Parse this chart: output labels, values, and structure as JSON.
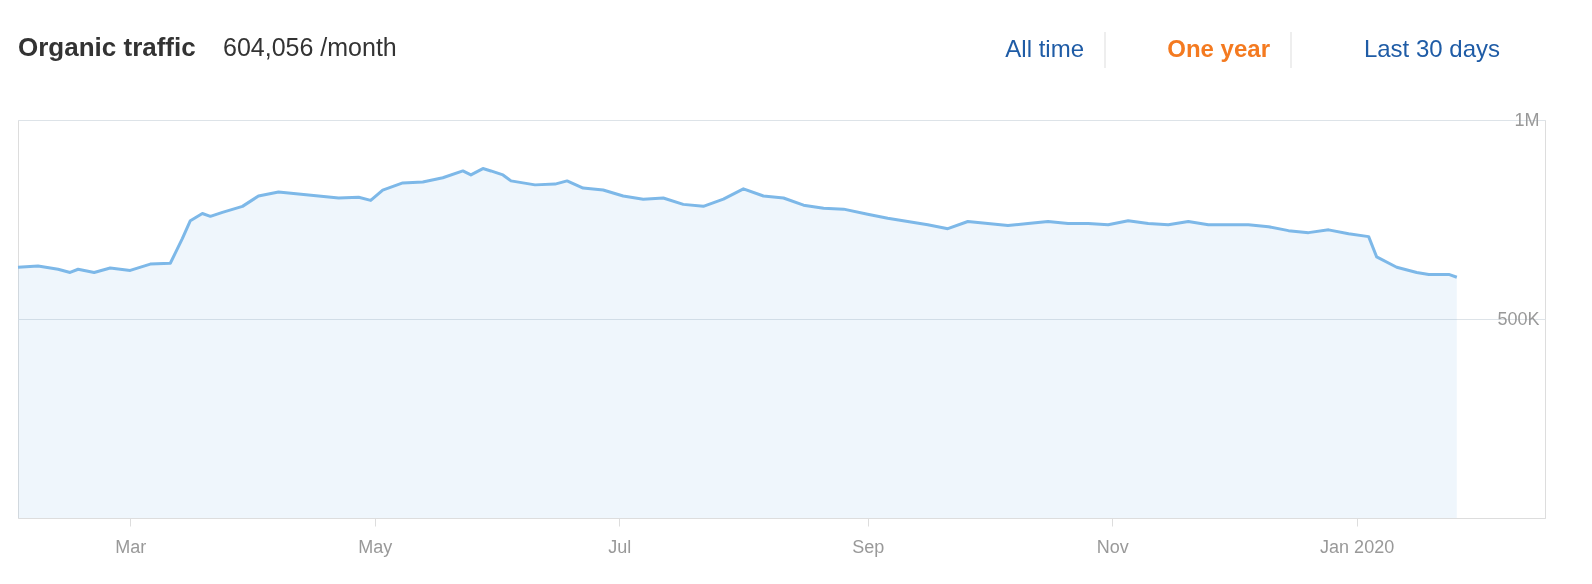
{
  "chart_data": {
    "type": "area",
    "title": "Organic traffic",
    "subtitle": "604,056 /month",
    "annotations": [
      "All time",
      "One year",
      "Last 30 days"
    ],
    "x": [
      "2019-02-01",
      "2019-02-06",
      "2019-02-11",
      "2019-02-14",
      "2019-02-16",
      "2019-02-20",
      "2019-02-24",
      "2019-03-01",
      "2019-03-06",
      "2019-03-11",
      "2019-03-14",
      "2019-03-16",
      "2019-03-19",
      "2019-03-21",
      "2019-03-24",
      "2019-03-29",
      "2019-04-02",
      "2019-04-07",
      "2019-04-12",
      "2019-04-17",
      "2019-04-22",
      "2019-04-27",
      "2019-04-30",
      "2019-05-03",
      "2019-05-08",
      "2019-05-13",
      "2019-05-18",
      "2019-05-23",
      "2019-05-25",
      "2019-05-28",
      "2019-05-30",
      "2019-06-02",
      "2019-06-04",
      "2019-06-10",
      "2019-06-15",
      "2019-06-18",
      "2019-06-22",
      "2019-06-27",
      "2019-07-02",
      "2019-07-07",
      "2019-07-12",
      "2019-07-17",
      "2019-07-22",
      "2019-07-27",
      "2019-08-01",
      "2019-08-06",
      "2019-08-11",
      "2019-08-16",
      "2019-08-21",
      "2019-08-26",
      "2019-09-01",
      "2019-09-06",
      "2019-09-11",
      "2019-09-16",
      "2019-09-21",
      "2019-09-26",
      "2019-10-01",
      "2019-10-06",
      "2019-10-11",
      "2019-10-16",
      "2019-10-21",
      "2019-10-26",
      "2019-10-31",
      "2019-11-05",
      "2019-11-10",
      "2019-11-15",
      "2019-11-20",
      "2019-11-25",
      "2019-11-30",
      "2019-12-05",
      "2019-12-10",
      "2019-12-15",
      "2019-12-20",
      "2019-12-25",
      "2019-12-30",
      "2020-01-04",
      "2020-01-06",
      "2020-01-11",
      "2020-01-16",
      "2020-01-19",
      "2020-01-24",
      "2020-01-26"
    ],
    "series": [
      {
        "color": "#7db8e8",
        "values": [
          630000,
          633000,
          625000,
          617000,
          625000,
          617000,
          628000,
          622000,
          638000,
          640000,
          702000,
          747000,
          765000,
          758000,
          768000,
          783000,
          809000,
          819000,
          814000,
          809000,
          804000,
          806000,
          798000,
          824000,
          842000,
          844000,
          855000,
          872000,
          862000,
          878000,
          872000,
          862000,
          847000,
          837000,
          839000,
          847000,
          829000,
          824000,
          809000,
          801000,
          804000,
          788000,
          783000,
          801000,
          827000,
          809000,
          804000,
          786000,
          778000,
          776000,
          763000,
          753000,
          745000,
          737000,
          727000,
          745000,
          740000,
          735000,
          740000,
          745000,
          740000,
          740000,
          737000,
          747000,
          740000,
          737000,
          745000,
          737000,
          737000,
          737000,
          732000,
          722000,
          717000,
          724000,
          714000,
          707000,
          656000,
          630000,
          617000,
          612000,
          612000,
          605000
        ]
      }
    ],
    "xlim": [
      "2019-02-01",
      "2020-02-17"
    ],
    "xticks": [
      {
        "value": "2019-03-01",
        "label": "Mar"
      },
      {
        "value": "2019-05-01",
        "label": "May"
      },
      {
        "value": "2019-07-01",
        "label": "Jul"
      },
      {
        "value": "2019-09-01",
        "label": "Sep"
      },
      {
        "value": "2019-11-01",
        "label": "Nov"
      },
      {
        "value": "2020-01-01",
        "label": "Jan 2020"
      }
    ],
    "ylim": [
      0,
      1000000
    ],
    "yticks": [
      {
        "value": 0,
        "label": null
      },
      {
        "value": 500000,
        "label": "500K"
      },
      {
        "value": 1000000,
        "label": "1M"
      }
    ],
    "grid": "y"
  }
}
